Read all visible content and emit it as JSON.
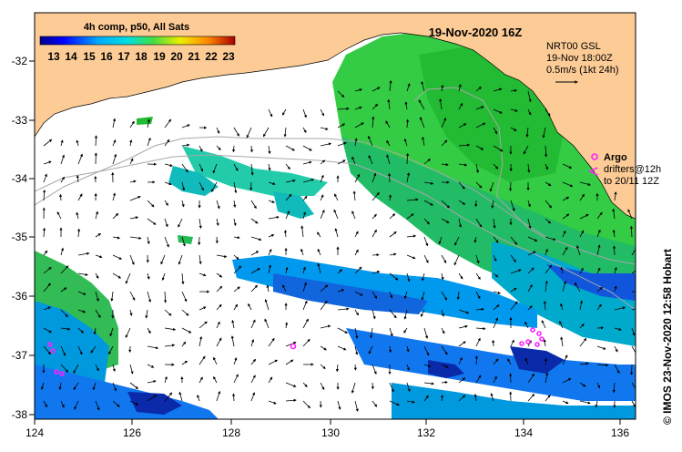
{
  "map": {
    "title": "19-Nov-2020 16Z",
    "credit": "© IMOS 23-Nov-2020 12:58 Hobart",
    "lon_range": [
      124,
      136.6
    ],
    "lat_range": [
      -38.1,
      -31.3
    ],
    "x_ticks": [
      "124",
      "126",
      "128",
      "130",
      "132",
      "134",
      "136"
    ],
    "y_ticks": [
      "-32",
      "-33",
      "-34",
      "-35",
      "-36",
      "-37",
      "-38"
    ],
    "colorbar": {
      "title": "4h comp, p50, All Sats",
      "ticks": [
        "13",
        "14",
        "15",
        "16",
        "17",
        "18",
        "19",
        "20",
        "21",
        "22",
        "23"
      ],
      "range": [
        12.5,
        23.5
      ]
    },
    "current_legend": {
      "line1": "NRT00 GSL",
      "line2": "19-Nov 18:00Z",
      "line3": "0.5m/s (1kt 24h)"
    },
    "argo_legend": {
      "label": "Argo",
      "line1": "drifters@12h",
      "line2": "to 20/11 12Z"
    },
    "colors": {
      "land": "#fccb96",
      "ocean": "#ffffff",
      "argo": "#ff22ff",
      "contour": "#a8a8a8"
    }
  }
}
